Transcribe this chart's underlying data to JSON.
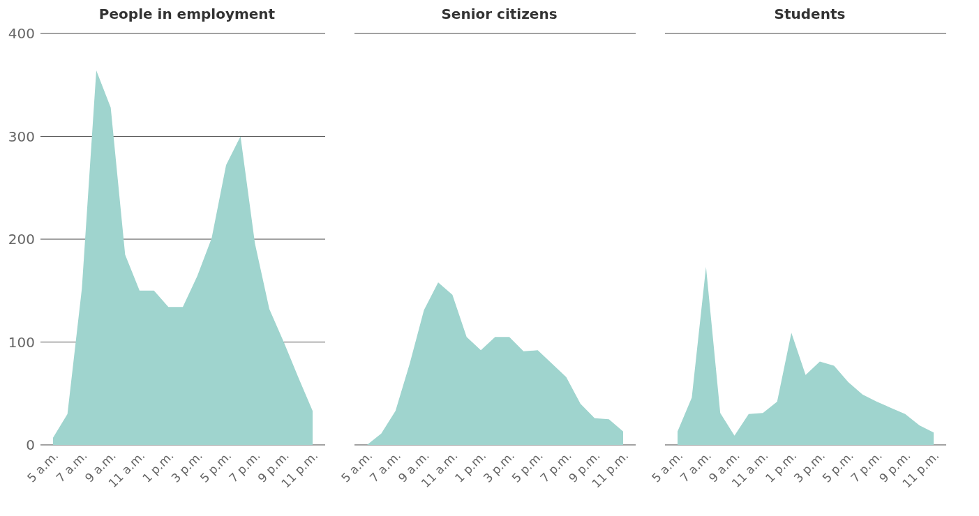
{
  "chart_data": [
    {
      "type": "area",
      "title": "People in employment",
      "categories": [
        "5 a.m.",
        null,
        "7 a.m.",
        null,
        "9 a.m.",
        null,
        "11 a.m.",
        null,
        "1 p.m.",
        null,
        "3 p.m.",
        null,
        "5 p.m.",
        null,
        "7 p.m.",
        null,
        "9 p.m.",
        null,
        "11 p.m."
      ],
      "series": [
        {
          "color": "#9fd4ce",
          "values": [
            7,
            30,
            152,
            364,
            328,
            185,
            150,
            150,
            134,
            134,
            164,
            201,
            272,
            300,
            196,
            132,
            100,
            66,
            33
          ]
        }
      ],
      "ylim": [
        0,
        400
      ],
      "yticks": [
        0,
        100,
        200,
        300,
        400
      ],
      "grid": "y"
    },
    {
      "type": "area",
      "title": "Senior citizens",
      "categories": [
        "5 a.m.",
        null,
        "7 a.m.",
        null,
        "9 a.m.",
        null,
        "11 a.m.",
        null,
        "1 p.m.",
        null,
        "3 p.m.",
        null,
        "5 p.m.",
        null,
        "7 p.m.",
        null,
        "9 p.m.",
        null,
        "11 p.m."
      ],
      "series": [
        {
          "color": "#9fd4ce",
          "values": [
            0,
            11,
            33,
            79,
            131,
            158,
            146,
            105,
            92,
            105,
            105,
            91,
            92,
            79,
            66,
            40,
            26,
            25,
            13
          ]
        }
      ],
      "ylim": [
        0,
        400
      ],
      "yticks": [
        0,
        100,
        200,
        300,
        400
      ],
      "grid": "y",
      "tick_labels": "x"
    },
    {
      "type": "area",
      "title": "Students",
      "categories": [
        "5 a.m.",
        null,
        "7 a.m.",
        null,
        "9 a.m.",
        null,
        "11 a.m.",
        null,
        "1 p.m.",
        null,
        "3 p.m.",
        null,
        "5 p.m.",
        null,
        "7 p.m.",
        null,
        "9 p.m.",
        null,
        "11 p.m."
      ],
      "series": [
        {
          "color": "#9fd4ce",
          "values": [
            13,
            46,
            173,
            31,
            9,
            30,
            31,
            42,
            109,
            68,
            81,
            77,
            61,
            49,
            42,
            36,
            30,
            19,
            12
          ]
        }
      ],
      "ylim": [
        0,
        400
      ],
      "yticks": [
        0,
        100,
        200,
        300,
        400
      ],
      "grid": "y",
      "tick_labels": "x"
    }
  ]
}
